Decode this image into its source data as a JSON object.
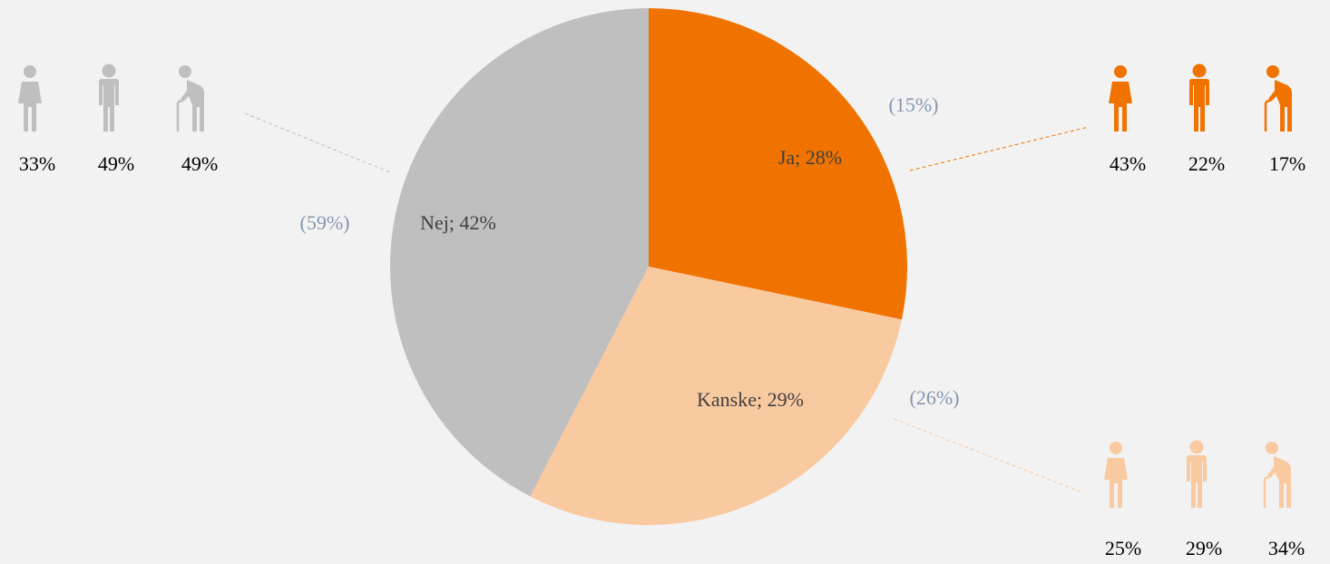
{
  "chart_data": {
    "type": "pie",
    "values": [
      28,
      29,
      42
    ],
    "value_labels": [
      "Ja; 28%",
      "Kanske; 29%",
      "Nej; 42%"
    ],
    "colors": [
      "#f07300",
      "#f9c9a0",
      "#bfbfbf"
    ],
    "comparison": [
      {
        "value": 15,
        "label": "(15%)"
      },
      {
        "value": 26,
        "label": "(26%)"
      },
      {
        "value": 59,
        "label": "(59%)"
      }
    ],
    "breakdown": [
      [
        {
          "value": 43,
          "label": "43%"
        },
        {
          "value": 22,
          "label": "22%"
        },
        {
          "value": 17,
          "label": "17%"
        }
      ],
      [
        {
          "value": 25,
          "label": "25%"
        },
        {
          "value": 29,
          "label": "29%"
        },
        {
          "value": 34,
          "label": "34%"
        }
      ],
      [
        {
          "value": 33,
          "label": "33%"
        },
        {
          "value": 49,
          "label": "49%"
        },
        {
          "value": 49,
          "label": "49%"
        }
      ]
    ]
  }
}
